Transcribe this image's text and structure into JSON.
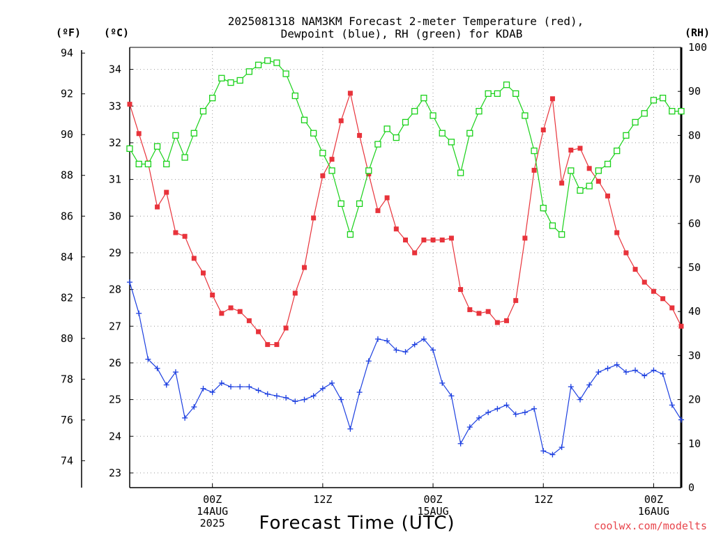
{
  "chart_data": {
    "type": "line",
    "title_lines": [
      "2025081318 NAM3KM Forecast 2-meter Temperature (red),",
      "Dewpoint (blue), RH (green) for KDAB"
    ],
    "xlabel": "Forecast Time (UTC)",
    "credit": "coolwx.com/modelts",
    "unit_labels": {
      "fahrenheit": "(ºF)",
      "celsius": "(ºC)",
      "rh": "(RH)"
    },
    "x_range_hours": [
      -3,
      57
    ],
    "x_ticks": [
      {
        "hour": 6,
        "lines": [
          "00Z",
          "14AUG",
          "2025"
        ]
      },
      {
        "hour": 18,
        "lines": [
          "12Z"
        ]
      },
      {
        "hour": 30,
        "lines": [
          "00Z",
          "15AUG"
        ]
      },
      {
        "hour": 42,
        "lines": [
          "12Z"
        ]
      },
      {
        "hour": 54,
        "lines": [
          "00Z",
          "16AUG"
        ]
      }
    ],
    "celsius_axis": {
      "range": [
        22.6,
        34.6
      ],
      "ticks": [
        23,
        24,
        25,
        26,
        27,
        28,
        29,
        30,
        31,
        32,
        33,
        34
      ]
    },
    "fahrenheit_axis": {
      "range": [
        72.68,
        94.28
      ],
      "ticks": [
        74,
        76,
        78,
        80,
        82,
        84,
        86,
        88,
        90,
        92,
        94
      ]
    },
    "rh_axis": {
      "range": [
        0,
        100
      ],
      "ticks": [
        0,
        10,
        20,
        30,
        40,
        50,
        60,
        70,
        80,
        90,
        100
      ]
    },
    "grid": true,
    "series": [
      {
        "name": "Temperature",
        "color": "#e8333b",
        "marker": "filled-square",
        "axis": "celsius",
        "x_start": -3,
        "x_step": 1,
        "values": [
          33.05,
          32.25,
          31.45,
          30.25,
          30.65,
          29.55,
          29.45,
          28.85,
          28.45,
          27.85,
          27.35,
          27.5,
          27.4,
          27.15,
          26.85,
          26.5,
          26.5,
          26.95,
          27.9,
          28.6,
          29.95,
          31.1,
          31.55,
          32.6,
          33.35,
          32.2,
          31.15,
          30.15,
          30.5,
          29.65,
          29.35,
          29.0,
          29.35,
          29.35,
          29.35,
          29.4,
          28.0,
          27.45,
          27.35,
          27.4,
          27.1,
          27.15,
          27.7,
          29.4,
          31.25,
          32.35,
          33.2,
          30.9,
          31.8,
          31.85,
          31.3,
          30.95,
          30.55,
          29.55,
          29.0,
          28.55,
          28.2,
          27.95,
          27.75,
          27.5,
          27.0
        ]
      },
      {
        "name": "Dewpoint",
        "color": "#1c3fe0",
        "marker": "plus",
        "axis": "celsius",
        "x_start": -3,
        "x_step": 1,
        "values": [
          28.2,
          27.35,
          26.1,
          25.85,
          25.4,
          25.75,
          24.5,
          24.8,
          25.3,
          25.2,
          25.45,
          25.35,
          25.35,
          25.35,
          25.25,
          25.15,
          25.1,
          25.05,
          24.95,
          25.0,
          25.1,
          25.3,
          25.45,
          25.0,
          24.2,
          25.2,
          26.05,
          26.65,
          26.6,
          26.35,
          26.3,
          26.5,
          26.65,
          26.35,
          25.45,
          25.1,
          23.8,
          24.25,
          24.5,
          24.65,
          24.75,
          24.85,
          24.6,
          24.65,
          24.75,
          23.6,
          23.5,
          23.7,
          25.35,
          25.0,
          25.4,
          25.75,
          25.85,
          25.95,
          25.75,
          25.8,
          25.65,
          25.8,
          25.7,
          24.85,
          24.45
        ]
      },
      {
        "name": "RH",
        "color": "#19d119",
        "marker": "open-square",
        "axis": "rh",
        "x_start": -3,
        "x_step": 1,
        "values": [
          77,
          73.5,
          73.5,
          77.5,
          73.5,
          80,
          75,
          80.5,
          85.5,
          88.5,
          93,
          92,
          92.5,
          94.5,
          96,
          97,
          96.5,
          94,
          89,
          83.5,
          80.5,
          76,
          72,
          64.5,
          57.5,
          64.5,
          72,
          78,
          81.5,
          79.5,
          83,
          85.5,
          88.5,
          84.5,
          80.5,
          78.5,
          71.5,
          80.5,
          85.5,
          89.5,
          89.5,
          91.5,
          89.5,
          84.5,
          76.5,
          63.5,
          59.5,
          57.5,
          72,
          67.5,
          68.5,
          72,
          73.5,
          76.5,
          80,
          83,
          85,
          88,
          88.5,
          85.5,
          85.5
        ]
      }
    ]
  }
}
